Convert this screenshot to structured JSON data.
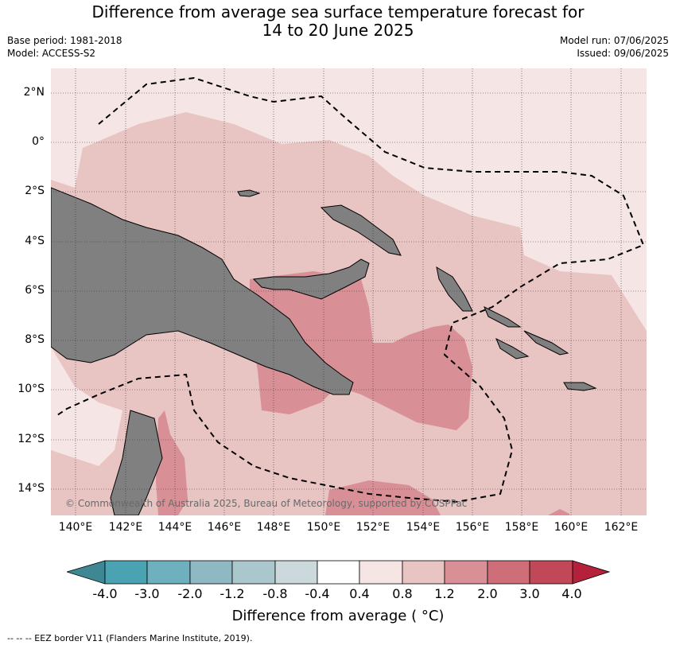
{
  "title_line1": "Difference from average sea surface temperature forecast for",
  "title_line2": "14 to 20 June 2025",
  "base_period": "Base period: 1981-2018",
  "model": "Model: ACCESS-S2",
  "model_run": "Model run: 07/06/2025",
  "issued": "Issued: 09/06/2025",
  "lat_labels": [
    "2°N",
    "0°",
    "2°S",
    "4°S",
    "6°S",
    "8°S",
    "10°S",
    "12°S",
    "14°S"
  ],
  "lon_labels": [
    "140°E",
    "142°E",
    "144°E",
    "146°E",
    "148°E",
    "150°E",
    "152°E",
    "154°E",
    "156°E",
    "158°E",
    "160°E",
    "162°E"
  ],
  "copyright": "© Commonwealth of Australia 2025, Bureau of Meteorology, supported by COSPPac",
  "colorbar": {
    "ticks": [
      "-4.0",
      "-3.0",
      "-2.0",
      "-1.2",
      "-0.8",
      "-0.4",
      "0.4",
      "0.8",
      "1.2",
      "2.0",
      "3.0",
      "4.0"
    ],
    "colors": [
      "#3f8893",
      "#49a3b3",
      "#6fb0be",
      "#8fb9c2",
      "#a9c7cc",
      "#ccd9dc",
      "#ffffff",
      "#f5e6e5",
      "#e8c4c2",
      "#d98f96",
      "#ce6e79",
      "#c04858",
      "#b5203a"
    ],
    "label": "Difference from average ( °C)"
  },
  "footer": "--  --  -- EEZ border V11 (Flanders Marine Institute, 2019)."
}
